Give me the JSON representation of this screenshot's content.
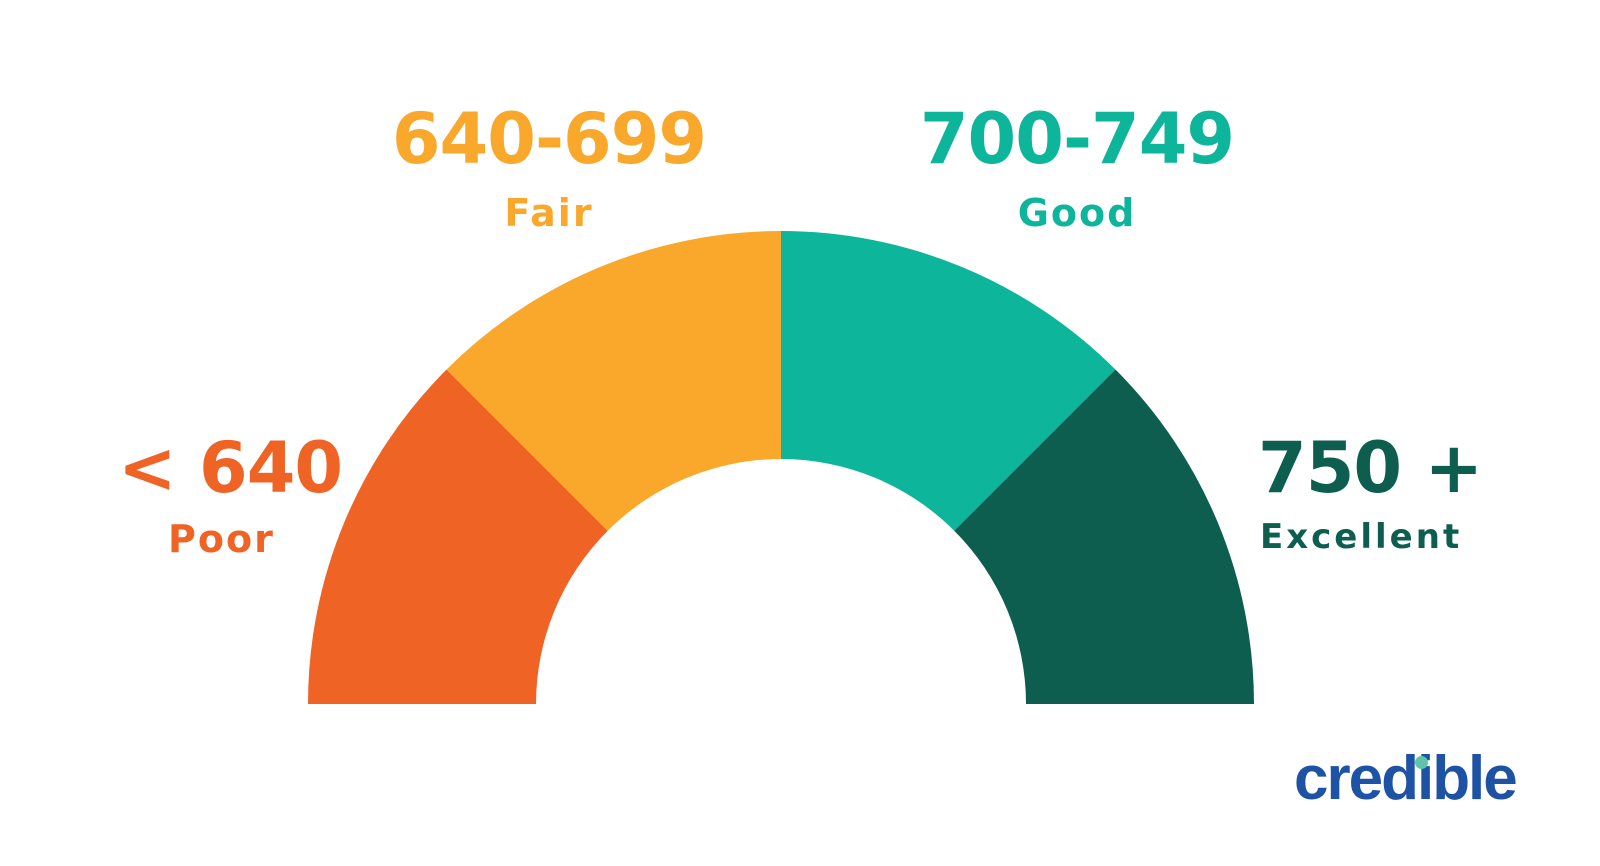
{
  "segments": [
    {
      "range": "< 640",
      "label": "Poor",
      "color": "#EF6325"
    },
    {
      "range": "640-699",
      "label": "Fair",
      "color": "#F9A82B"
    },
    {
      "range": "700-749",
      "label": "Good",
      "color": "#0DB59A"
    },
    {
      "range": "750 +",
      "label": "Excellent",
      "color": "#0E5E50"
    }
  ],
  "logo": {
    "text": "credible",
    "color": "#1E52A5",
    "dot_color": "#5FC4A8"
  }
}
